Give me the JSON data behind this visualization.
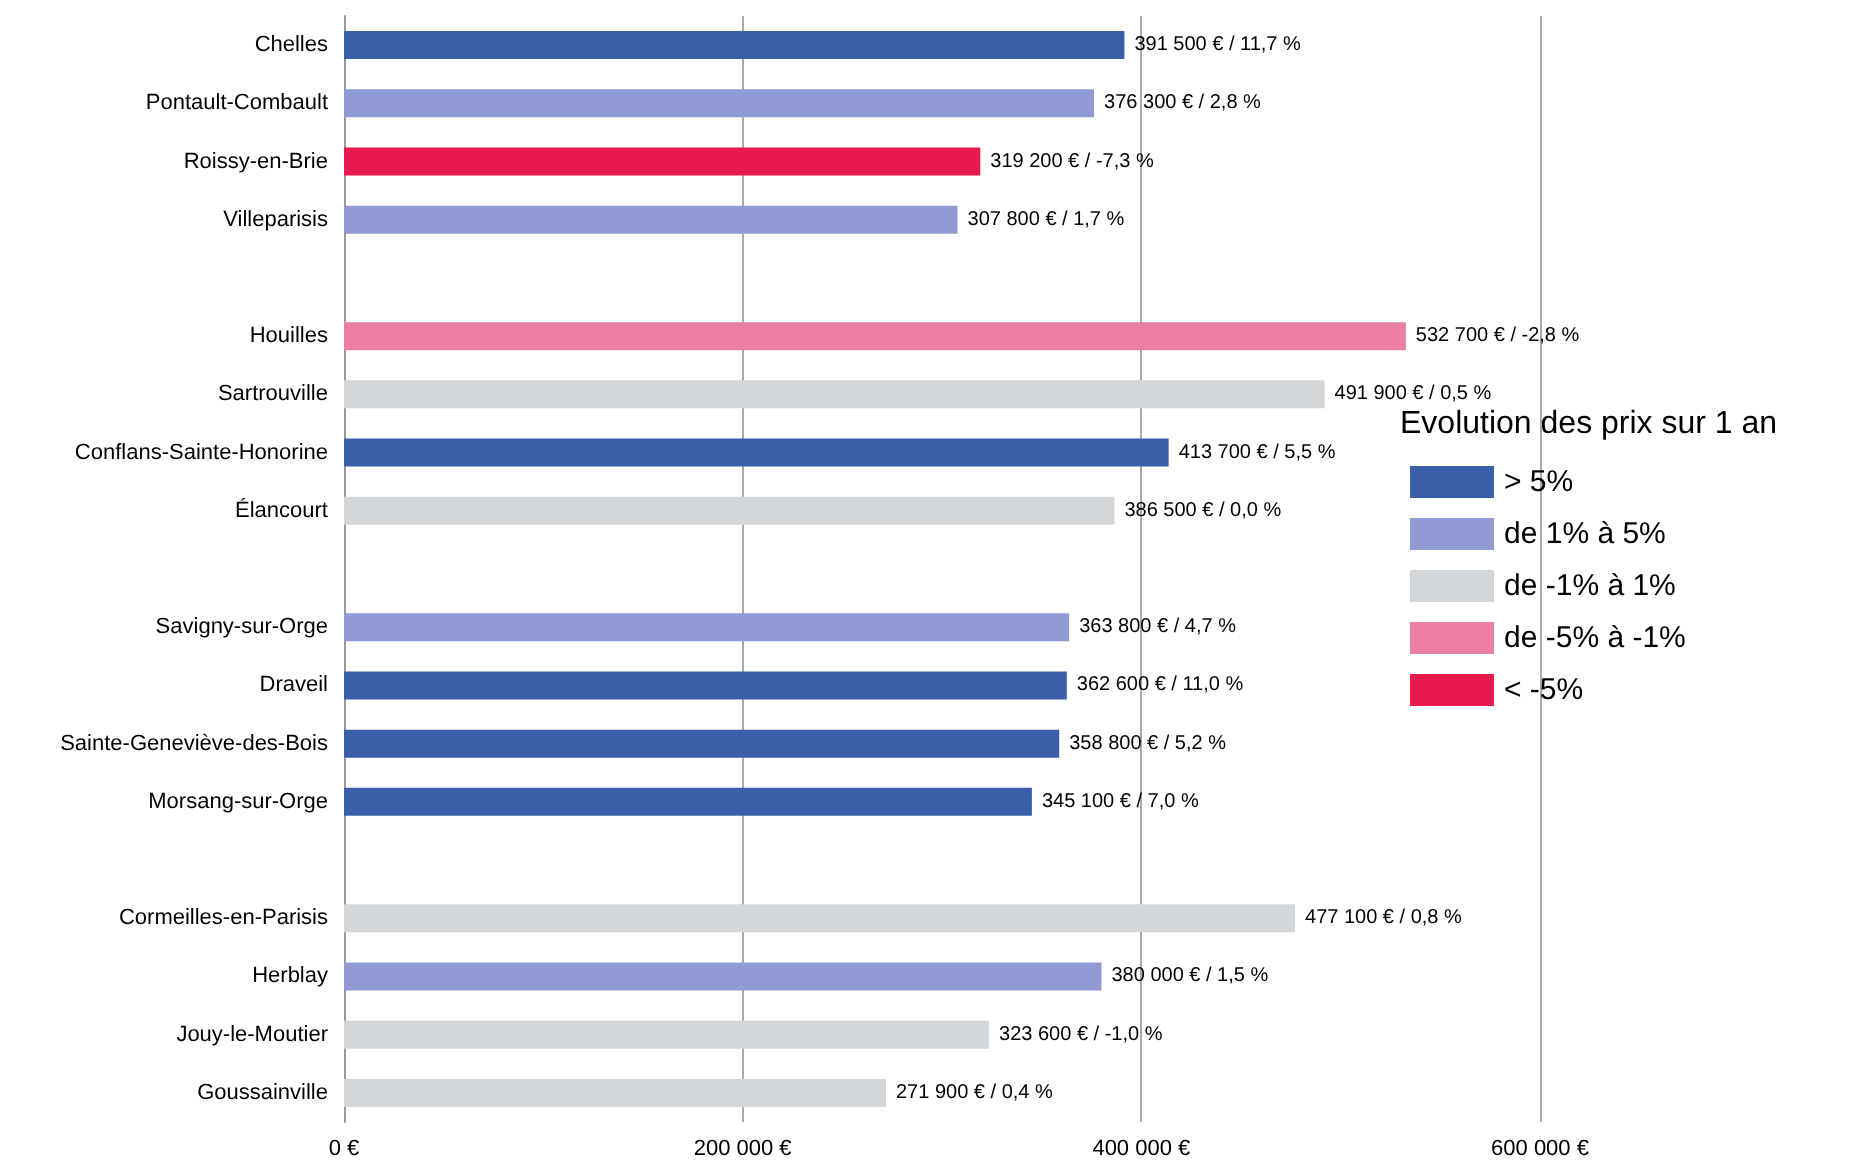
{
  "chart_data": {
    "type": "bar",
    "orientation": "horizontal",
    "stacked": true,
    "categories": [
      "Chelles",
      "Pontault-Combault",
      "Roissy-en-Brie",
      "Villeparisis",
      null,
      "Houilles",
      "Sartrouville",
      "Conflans-Sainte-Honorine",
      "Élancourt",
      null,
      "Savigny-sur-Orge",
      "Draveil",
      "Sainte-Geneviève-des-Bois",
      "Morsang-sur-Orge",
      null,
      "Cormeilles-en-Parisis",
      "Herblay",
      "Jouy-le-Moutier",
      "Goussainville"
    ],
    "series": [
      {
        "name": "> 5%",
        "color": "#3a5fa8",
        "values": [
          391500,
          null,
          null,
          null,
          null,
          null,
          null,
          413700,
          null,
          null,
          null,
          362600,
          358800,
          345100,
          null,
          null,
          null,
          null,
          null
        ],
        "value_labels": [
          "391 500 € / 11,7 %",
          null,
          null,
          null,
          null,
          null,
          null,
          "413 700 € / 5,5 %",
          null,
          null,
          null,
          "362 600 € / 11,0 %",
          "358 800 € / 5,2 %",
          "345 100 € / 7,0 %",
          null,
          null,
          null,
          null,
          null
        ]
      },
      {
        "name": "de 1% à 5%",
        "color": "#8f9bd2",
        "values": [
          null,
          376300,
          null,
          307800,
          null,
          null,
          null,
          null,
          null,
          null,
          363800,
          null,
          null,
          null,
          null,
          null,
          380000,
          null,
          null
        ],
        "value_labels": [
          null,
          "376 300 € / 2,8 %",
          null,
          "307 800 € / 1,7 %",
          null,
          null,
          null,
          null,
          null,
          null,
          "363 800 € / 4,7 %",
          null,
          null,
          null,
          null,
          null,
          "380 000 € / 1,5 %",
          null,
          null
        ]
      },
      {
        "name": "de -1% à 1%",
        "color": "#d4d7da",
        "values": [
          null,
          null,
          null,
          null,
          null,
          null,
          491900,
          null,
          386500,
          null,
          null,
          null,
          null,
          null,
          null,
          477100,
          null,
          323600,
          271900
        ],
        "value_labels": [
          null,
          null,
          null,
          null,
          null,
          null,
          "491 900 € / 0,5 %",
          null,
          "386 500 € / 0,0 %",
          null,
          null,
          null,
          null,
          null,
          null,
          "477 100 € / 0,8 %",
          null,
          "323 600 € / -1,0 %",
          "271 900 € / 0,4 %"
        ]
      },
      {
        "name": "de -5% à -1%",
        "color": "#ea7ea3",
        "values": [
          null,
          null,
          null,
          null,
          null,
          532700,
          null,
          null,
          null,
          null,
          null,
          null,
          null,
          null,
          null,
          null,
          null,
          null,
          null
        ],
        "value_labels": [
          null,
          null,
          null,
          null,
          null,
          "532 700 € / -2,8 %",
          null,
          null,
          null,
          null,
          null,
          null,
          null,
          null,
          null,
          null,
          null,
          null,
          null
        ]
      },
      {
        "name": "< -5%",
        "color": "#e8194f",
        "values": [
          null,
          null,
          319200,
          null,
          null,
          null,
          null,
          null,
          null,
          null,
          null,
          null,
          null,
          null,
          null,
          null,
          null,
          null,
          null
        ],
        "value_labels": [
          null,
          null,
          "319 200 € / -7,3 %",
          null,
          null,
          null,
          null,
          null,
          null,
          null,
          null,
          null,
          null,
          null,
          null,
          null,
          null,
          null,
          null
        ]
      }
    ],
    "xlim": [
      0,
      600000
    ],
    "xticks": [
      {
        "value": 0,
        "label": "0 €"
      },
      {
        "value": 200000,
        "label": "200 000 €"
      },
      {
        "value": 400000,
        "label": "400 000 €"
      },
      {
        "value": 600000,
        "label": "600 000 €"
      }
    ],
    "grid": "x",
    "legend": "right",
    "legend_title": "Evolution des prix sur 1 an"
  }
}
